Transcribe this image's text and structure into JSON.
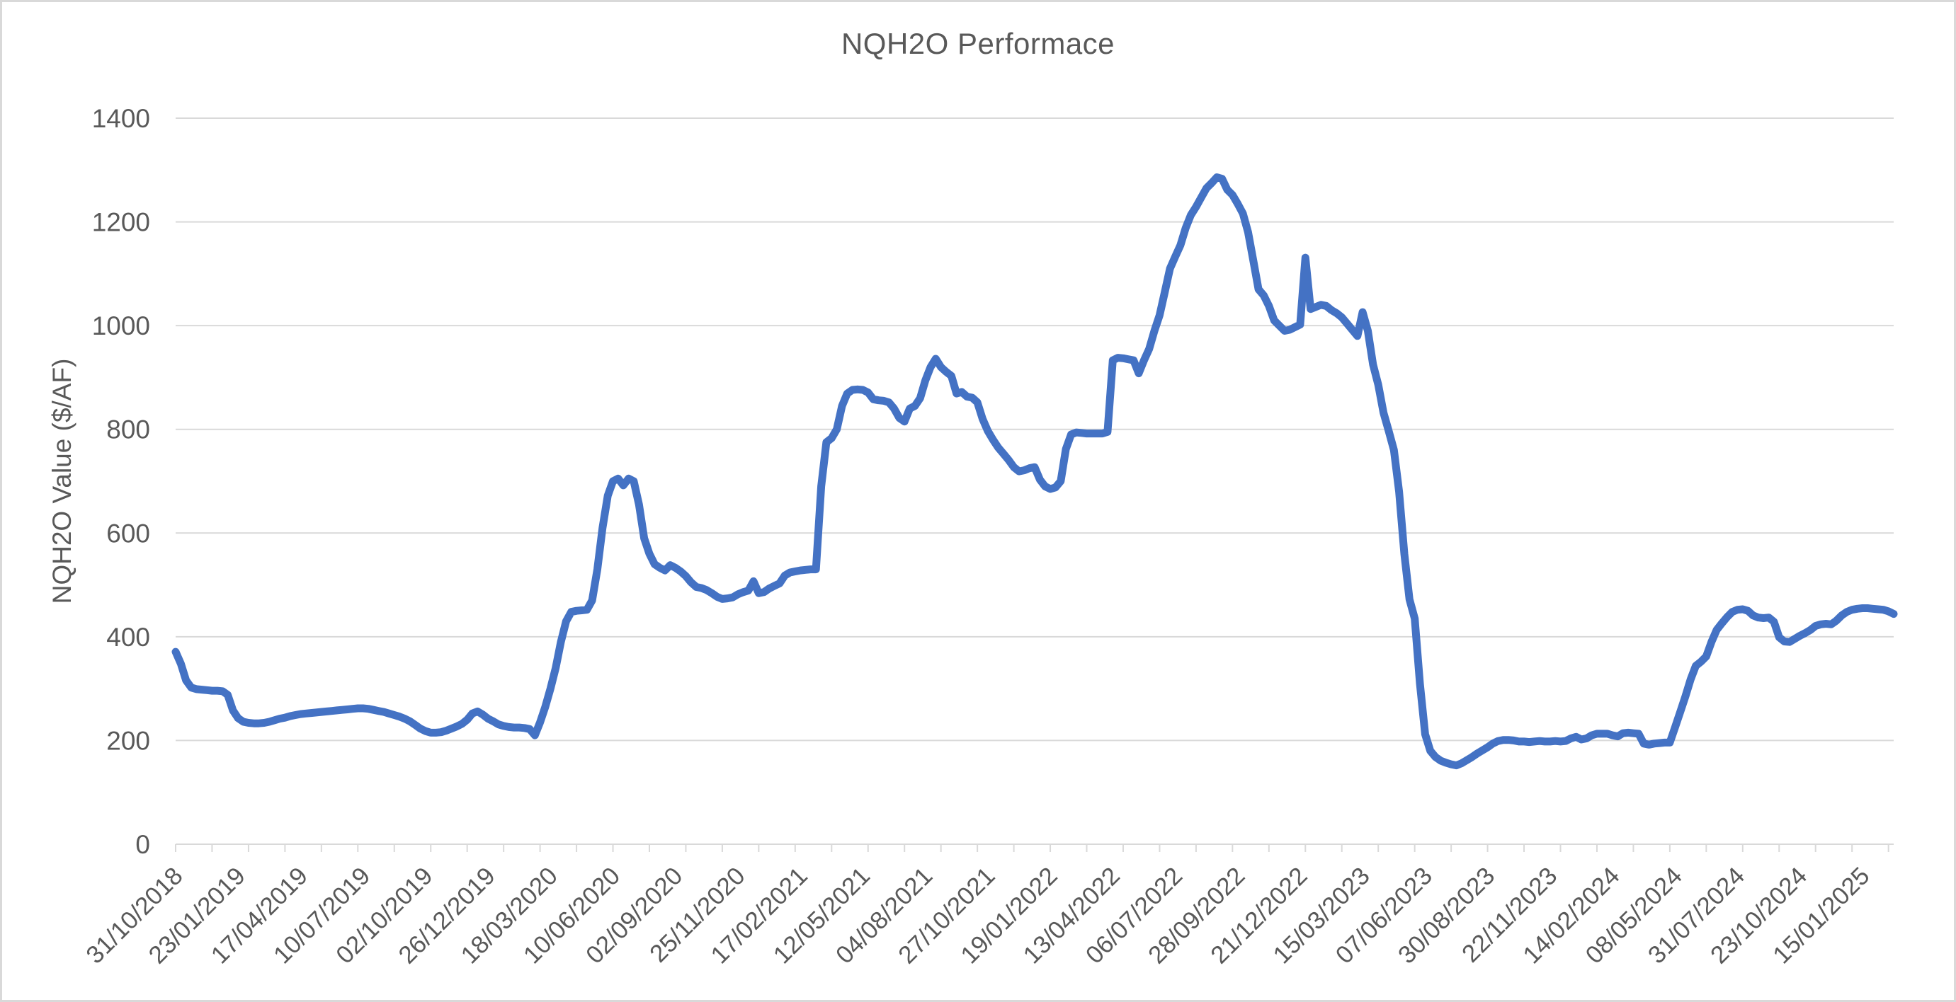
{
  "chart_data": {
    "type": "line",
    "title": "NQH2O Performace",
    "xlabel": "",
    "ylabel": "NQH2O Value ($/AF)",
    "ylim": [
      0,
      1400
    ],
    "ytick_interval": 200,
    "y_tick_labels": [
      "0",
      "200",
      "400",
      "600",
      "800",
      "1000",
      "1200",
      "1400"
    ],
    "x_tick_labels": [
      "31/10/2018",
      "23/01/2019",
      "17/04/2019",
      "10/07/2019",
      "02/10/2019",
      "26/12/2019",
      "18/03/2020",
      "10/06/2020",
      "02/09/2020",
      "25/11/2020",
      "17/02/2021",
      "12/05/2021",
      "04/08/2021",
      "27/10/2021",
      "19/01/2022",
      "13/04/2022",
      "06/07/2022",
      "28/09/2022",
      "21/12/2022",
      "15/03/2023",
      "07/06/2023",
      "30/08/2023",
      "22/11/2023",
      "14/02/2024",
      "08/05/2024",
      "31/07/2024",
      "23/10/2024",
      "15/01/2025"
    ],
    "x_label_interval_weeks": 12,
    "x_minor_tick_interval_weeks": 7,
    "x_label_rotation_deg": -45,
    "grid": "horizontal",
    "legend_position": "none",
    "series": [
      {
        "name": "NQH2O",
        "frequency": "weekly",
        "start_date": "31/10/2018",
        "values": [
          371,
          348,
          316,
          302,
          299,
          298,
          297,
          296,
          296,
          295,
          288,
          258,
          243,
          236,
          234,
          233,
          233,
          234,
          236,
          239,
          242,
          244,
          247,
          249,
          251,
          252,
          253,
          254,
          255,
          256,
          257,
          258,
          259,
          260,
          261,
          262,
          262,
          261,
          259,
          257,
          255,
          252,
          249,
          246,
          242,
          237,
          230,
          223,
          218,
          215,
          215,
          216,
          219,
          223,
          227,
          232,
          240,
          252,
          256,
          250,
          242,
          237,
          231,
          228,
          226,
          225,
          225,
          224,
          222,
          210,
          235,
          265,
          300,
          340,
          390,
          430,
          448,
          450,
          451,
          452,
          470,
          530,
          610,
          672,
          700,
          705,
          692,
          705,
          700,
          655,
          590,
          560,
          540,
          533,
          528,
          538,
          533,
          526,
          517,
          505,
          496,
          494,
          490,
          484,
          477,
          473,
          474,
          476,
          482,
          486,
          489,
          507,
          484,
          486,
          493,
          498,
          503,
          518,
          524,
          526,
          528,
          529,
          530,
          530,
          690,
          775,
          783,
          800,
          845,
          869,
          876,
          877,
          876,
          871,
          858,
          856,
          855,
          852,
          840,
          822,
          815,
          840,
          845,
          860,
          894,
          920,
          936,
          920,
          911,
          903,
          869,
          872,
          863,
          861,
          852,
          820,
          797,
          780,
          765,
          753,
          741,
          727,
          719,
          721,
          725,
          727,
          703,
          690,
          685,
          688,
          700,
          762,
          790,
          794,
          793,
          792,
          792,
          792,
          792,
          795,
          933,
          938,
          937,
          935,
          933,
          908,
          933,
          955,
          990,
          1020,
          1065,
          1110,
          1133,
          1155,
          1188,
          1213,
          1229,
          1247,
          1265,
          1275,
          1286,
          1283,
          1262,
          1252,
          1235,
          1216,
          1180,
          1125,
          1070,
          1058,
          1038,
          1010,
          1000,
          990,
          992,
          997,
          1002,
          1131,
          1032,
          1036,
          1040,
          1038,
          1030,
          1024,
          1016,
          1004,
          992,
          980,
          1026,
          990,
          925,
          886,
          832,
          797,
          760,
          680,
          560,
          472,
          435,
          310,
          212,
          180,
          168,
          161,
          157,
          154,
          152,
          156,
          162,
          168,
          175,
          181,
          187,
          194,
          199,
          201,
          201,
          200,
          198,
          198,
          197,
          198,
          199,
          198,
          198,
          199,
          198,
          199,
          204,
          207,
          202,
          204,
          210,
          213,
          213,
          213,
          210,
          208,
          214,
          215,
          214,
          213,
          194,
          192,
          194,
          195,
          196,
          196,
          225,
          255,
          285,
          318,
          344,
          352,
          362,
          390,
          413,
          426,
          438,
          448,
          452,
          453,
          450,
          441,
          437,
          436,
          437,
          429,
          399,
          391,
          390,
          396,
          402,
          407,
          413,
          421,
          424,
          425,
          424,
          431,
          441,
          448,
          452,
          454,
          455,
          455,
          454,
          453,
          452,
          449,
          444
        ]
      }
    ],
    "styles": {
      "line_color": "#4472C4",
      "line_width": 11,
      "gridline_color": "#D9D9D9",
      "axis_color": "#D9D9D9",
      "tick_color": "#D9D9D9",
      "text_color": "#595959",
      "border_color": "#D9D9D9",
      "background_color": "#FFFFFF"
    }
  }
}
